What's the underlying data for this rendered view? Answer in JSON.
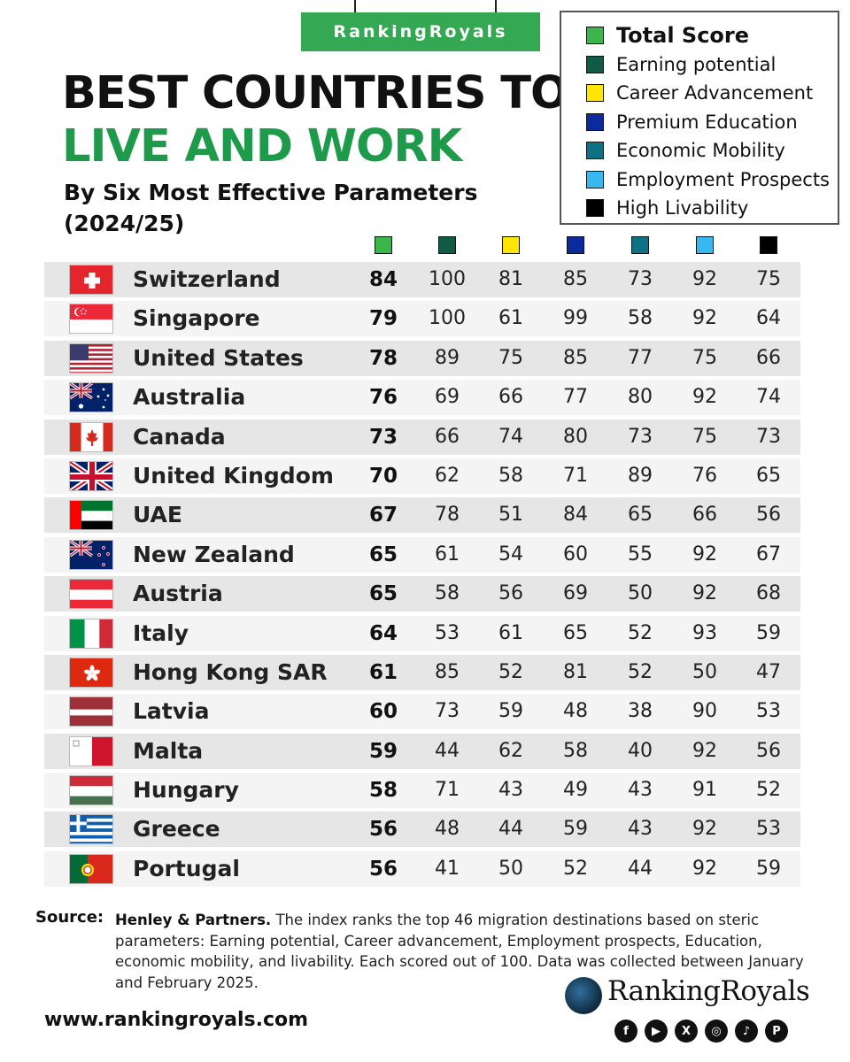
{
  "brand_tag": "RankingRoyals",
  "title": {
    "line1": "BEST COUNTRIES TO",
    "line2": "LIVE AND WORK"
  },
  "subtitle": {
    "line1": "By Six Most Effective Parameters",
    "line2": "(2024/25)"
  },
  "legend": [
    {
      "label": "Total Score",
      "color": "#3cb54a"
    },
    {
      "label": "Earning potential",
      "color": "#0f5b45"
    },
    {
      "label": "Career Advancement",
      "color": "#ffe600"
    },
    {
      "label": "Premium Education",
      "color": "#0b2a9c"
    },
    {
      "label": "Economic Mobility",
      "color": "#0e7284"
    },
    {
      "label": "Employment Prospects",
      "color": "#37b9ef"
    },
    {
      "label": "High Livability",
      "color": "#000000"
    }
  ],
  "rows": [
    {
      "country": "Switzerland",
      "flag": "switzerland-flag",
      "total": "84",
      "scores": [
        "100",
        "81",
        "85",
        "73",
        "92",
        "75"
      ]
    },
    {
      "country": "Singapore",
      "flag": "singapore-flag",
      "total": "79",
      "scores": [
        "100",
        "61",
        "99",
        "58",
        "92",
        "64"
      ]
    },
    {
      "country": "United States",
      "flag": "united-states-flag",
      "total": "78",
      "scores": [
        "89",
        "75",
        "85",
        "77",
        "75",
        "66"
      ]
    },
    {
      "country": "Australia",
      "flag": "australia-flag",
      "total": "76",
      "scores": [
        "69",
        "66",
        "77",
        "80",
        "92",
        "74"
      ]
    },
    {
      "country": "Canada",
      "flag": "canada-flag",
      "total": "73",
      "scores": [
        "66",
        "74",
        "80",
        "73",
        "75",
        "73"
      ]
    },
    {
      "country": "United Kingdom",
      "flag": "united-kingdom-flag",
      "total": "70",
      "scores": [
        "62",
        "58",
        "71",
        "89",
        "76",
        "65"
      ]
    },
    {
      "country": "UAE",
      "flag": "uae-flag",
      "total": "67",
      "scores": [
        "78",
        "51",
        "84",
        "65",
        "66",
        "56"
      ]
    },
    {
      "country": "New Zealand",
      "flag": "new-zealand-flag",
      "total": "65",
      "scores": [
        "61",
        "54",
        "60",
        "55",
        "92",
        "67"
      ]
    },
    {
      "country": "Austria",
      "flag": "austria-flag",
      "total": "65",
      "scores": [
        "58",
        "56",
        "69",
        "50",
        "92",
        "68"
      ]
    },
    {
      "country": "Italy",
      "flag": "italy-flag",
      "total": "64",
      "scores": [
        "53",
        "61",
        "65",
        "52",
        "93",
        "59"
      ]
    },
    {
      "country": "Hong Kong SAR",
      "flag": "hong-kong-flag",
      "total": "61",
      "scores": [
        "85",
        "52",
        "81",
        "52",
        "50",
        "47"
      ]
    },
    {
      "country": "Latvia",
      "flag": "latvia-flag",
      "total": "60",
      "scores": [
        "73",
        "59",
        "48",
        "38",
        "90",
        "53"
      ]
    },
    {
      "country": "Malta",
      "flag": "malta-flag",
      "total": "59",
      "scores": [
        "44",
        "62",
        "58",
        "40",
        "92",
        "56"
      ]
    },
    {
      "country": "Hungary",
      "flag": "hungary-flag",
      "total": "58",
      "scores": [
        "71",
        "43",
        "49",
        "43",
        "91",
        "52"
      ]
    },
    {
      "country": "Greece",
      "flag": "greece-flag",
      "total": "56",
      "scores": [
        "48",
        "44",
        "59",
        "43",
        "92",
        "53"
      ]
    },
    {
      "country": "Portugal",
      "flag": "portugal-flag",
      "total": "56",
      "scores": [
        "41",
        "50",
        "52",
        "44",
        "92",
        "59"
      ]
    }
  ],
  "source": {
    "label": "Source:",
    "org": "Henley & Partners.",
    "text": "The index ranks the top 46 migration destinations based on steric parameters: Earning potential, Career advancement, Employment prospects, Education, economic mobility, and livability. Each scored out of 100. Data was collected between January and February 2025."
  },
  "website": "www.rankingroyals.com",
  "logo": {
    "name": "RankingRoyals"
  },
  "social_icons": [
    "facebook-icon",
    "youtube-icon",
    "x-icon",
    "instagram-icon",
    "tiktok-icon",
    "pinterest-icon"
  ]
}
